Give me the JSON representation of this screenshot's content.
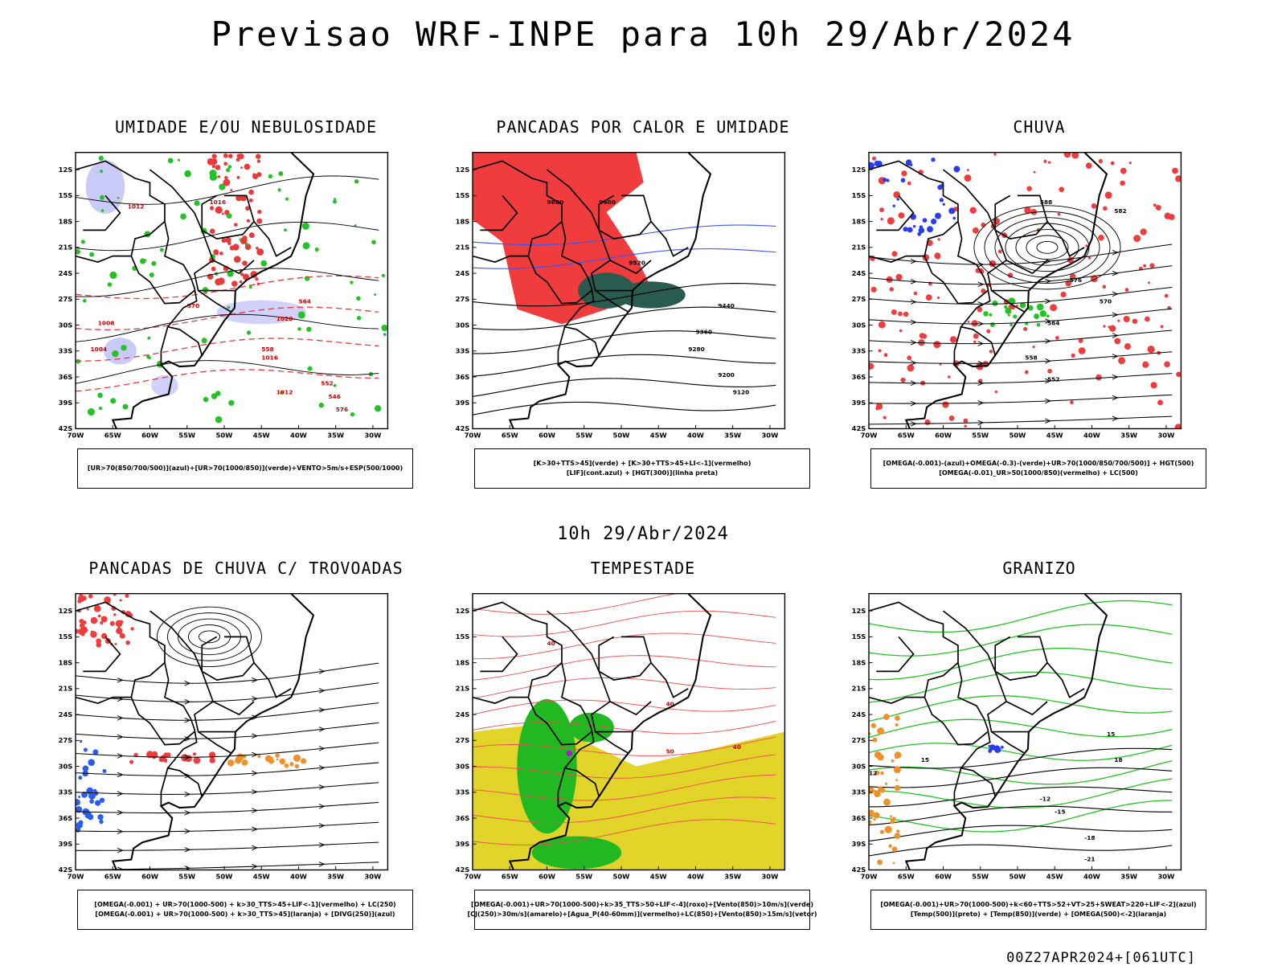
{
  "header": {
    "title": "Previsao WRF-INPE  para 10h 29/Abr/2024",
    "subtitle_date": "10h 29/Abr/2024",
    "footer": "00Z27APR2024+[061UTC]"
  },
  "axes": {
    "latitudes": [
      "12S",
      "15S",
      "18S",
      "21S",
      "24S",
      "27S",
      "30S",
      "33S",
      "36S",
      "39S",
      "42S"
    ],
    "longitudes": [
      "70W",
      "65W",
      "60W",
      "55W",
      "50W",
      "45W",
      "40W",
      "35W",
      "30W"
    ]
  },
  "panels": [
    {
      "title": "UMIDADE E/OU NEBULOSIDADE",
      "legend": [
        "[UR>70(850/700/500)](azul)+[UR>70(1000/850)](verde)+VENTO>5m/s+ESP(500/1000)"
      ],
      "contour_labels": [
        "1012",
        "1016",
        "1008",
        "1004",
        "1020",
        "1016",
        "1012",
        "576",
        "570",
        "564",
        "558",
        "552",
        "546"
      ],
      "layers": {
        "blue": "#b3b3f5",
        "green": "#22c322",
        "red": "#e83a3a"
      }
    },
    {
      "title": "PANCADAS POR CALOR E UMIDADE",
      "legend": [
        "[K>30+TTS>45](verde) + [K>30+TTS>45+LI<-1](vermelho)",
        "[LIF](cont.azul) + [HGT(300)](linha preta)"
      ],
      "contour_labels": [
        "9680",
        "9600",
        "9520",
        "9440",
        "9360",
        "9280",
        "9200",
        "9120"
      ],
      "layers": {
        "red": "#f03c3c",
        "green": "#2a5b4f",
        "blue": "#3c55f0"
      }
    },
    {
      "title": "CHUVA",
      "legend": [
        "[OMEGA(-0.001)-(azul)+OMEGA(-0.3)-(verde)+UR>70(1000/850/700/500)] + HGT(500)",
        "[OMEGA(-0.01)_UR>50(1000/850)(vermelho) + LC(500)"
      ],
      "contour_labels": [
        "588",
        "582",
        "576",
        "570",
        "564",
        "558",
        "552"
      ],
      "layers": {
        "red": "#f03c3c",
        "blue": "#2a3cf0",
        "green": "#22c322"
      }
    },
    {
      "title": "PANCADAS DE CHUVA C/ TROVOADAS",
      "legend": [
        "[OMEGA(-0.001) + UR>70(1000-500) + k>30_TTS>45+LIF<-1](vermelho) + LC(250)",
        "[OMEGA(-0.001) + UR>70(1000-500) + k>30_TTS>45](laranja) + [DIVG(250)](azul)"
      ],
      "contour_labels": [],
      "layers": {
        "red": "#f03c3c",
        "orange": "#f0902a",
        "blue": "#2a5cf0"
      }
    },
    {
      "title": "TEMPESTADE",
      "legend": [
        "[OMEGA(-0.001)+UR>70(1000-500)+k>35_TTS>50+LIF<-4](roxo)+[Vento(850)>10m/s](verde)",
        "[CJ(250)>30m/s](amarelo)+[Agua_P(40-60mm)](vermelho)+LC(850)+[Vento(850)>15m/s](vetor)"
      ],
      "contour_labels": [
        "40",
        "40",
        "50",
        "40"
      ],
      "layers": {
        "yellow": "#e3d42a",
        "green": "#22b822",
        "red": "#f05050",
        "purple": "#a020c0"
      }
    },
    {
      "title": "GRANIZO",
      "legend": [
        "[OMEGA(-0.001)+UR>70(1000-500)+k<60+TTS>52+VT>25+SWEAT>220+LIF<-2](azul)",
        "[Temp(500)](preto) + [Temp(850)](verde) + [OMEGA(500)<-2](laranja)"
      ],
      "contour_labels": [
        "15",
        "18",
        "15",
        "-12",
        "-15",
        "-18",
        "-21",
        "12"
      ],
      "layers": {
        "green": "#22c322",
        "blue": "#2a3cf0",
        "orange": "#f0902a"
      }
    }
  ]
}
